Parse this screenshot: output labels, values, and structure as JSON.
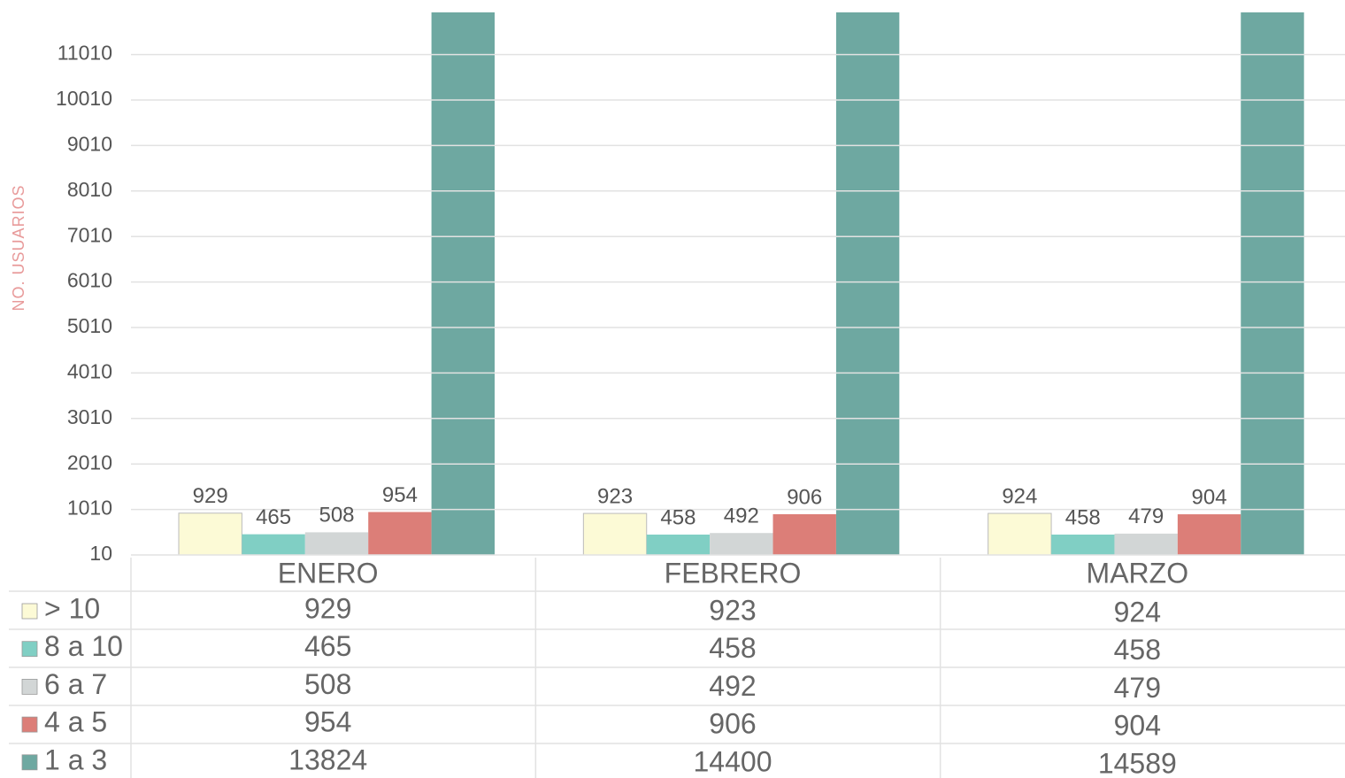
{
  "chart_data": {
    "type": "bar",
    "y_label": "NO. USUARIOS",
    "categories": [
      "ENERO",
      "FEBRERO",
      "MARZO"
    ],
    "series": [
      {
        "name": "> 10",
        "color": "#fcfad6",
        "values": [
          929,
          923,
          924
        ]
      },
      {
        "name": "8 a 10",
        "color": "#80cfc4",
        "values": [
          465,
          458,
          458
        ]
      },
      {
        "name": "6 a 7",
        "color": "#d2d6d6",
        "values": [
          508,
          492,
          479
        ]
      },
      {
        "name": "4 a 5",
        "color": "#dc7e78",
        "values": [
          954,
          906,
          904
        ]
      },
      {
        "name": "1 a 3",
        "color": "#6ea8a1",
        "values": [
          13824,
          14400,
          14589
        ]
      }
    ],
    "ylim": [
      10,
      11936
    ],
    "yticks": [
      10,
      1010,
      2010,
      3010,
      4010,
      5010,
      6010,
      7010,
      8010,
      9010,
      10010,
      11010
    ],
    "grid": true
  }
}
